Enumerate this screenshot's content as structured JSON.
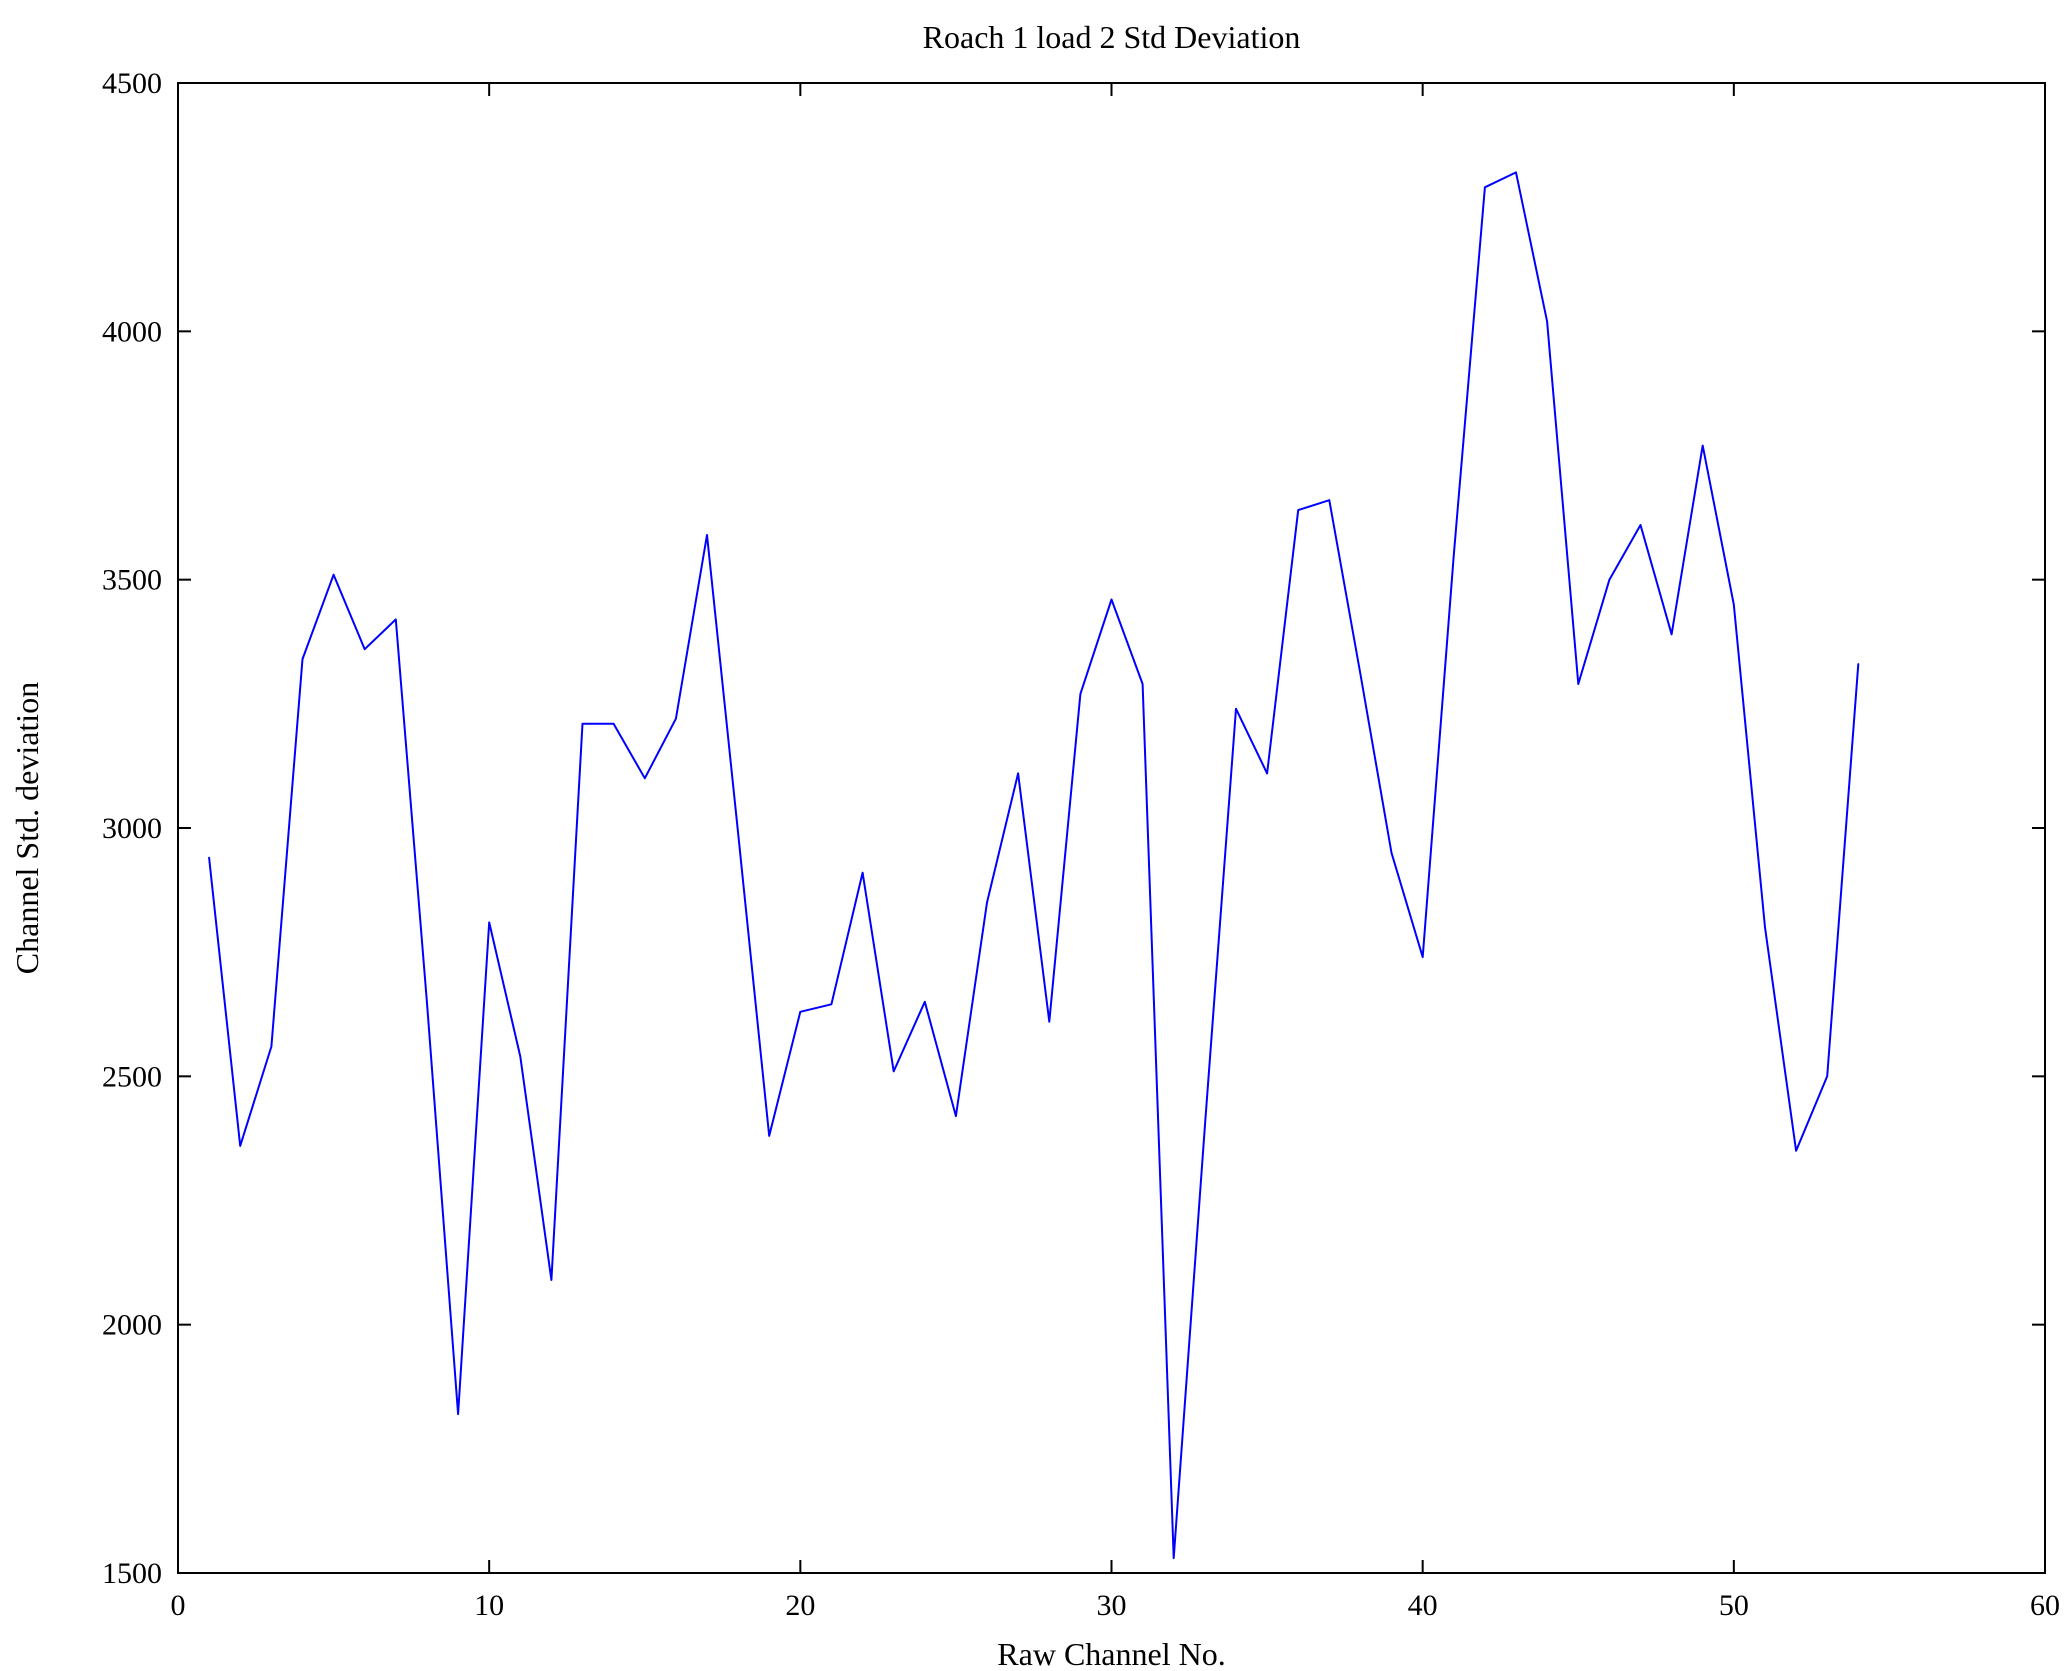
{
  "chart_data": {
    "type": "line",
    "title": "Roach 1 load 2 Std Deviation",
    "xlabel": "Raw Channel No.",
    "ylabel": "Channel Std. deviation",
    "xlim": [
      0,
      60
    ],
    "ylim": [
      1500,
      4500
    ],
    "xticks": [
      0,
      10,
      20,
      30,
      40,
      50,
      60
    ],
    "yticks": [
      1500,
      2000,
      2500,
      3000,
      3500,
      4000,
      4500
    ],
    "grid": false,
    "legend": "none",
    "line_color": "#0000ff",
    "axis_color": "#000000",
    "series_name": "Channel Std. deviation",
    "x": [
      1,
      2,
      3,
      4,
      5,
      6,
      7,
      8,
      9,
      10,
      11,
      12,
      13,
      14,
      15,
      16,
      17,
      18,
      19,
      20,
      21,
      22,
      23,
      24,
      25,
      26,
      27,
      28,
      29,
      30,
      31,
      32,
      33,
      34,
      35,
      36,
      37,
      38,
      39,
      40,
      41,
      42,
      43,
      44,
      45,
      46,
      47,
      48,
      49,
      50,
      51,
      52,
      53,
      54
    ],
    "y": [
      2940,
      2360,
      2560,
      3340,
      3510,
      3360,
      3420,
      2650,
      1820,
      2810,
      2540,
      2090,
      3210,
      3210,
      3100,
      3220,
      3590,
      2990,
      2380,
      2630,
      2645,
      2910,
      2510,
      2650,
      2420,
      2850,
      3110,
      2610,
      3270,
      3460,
      3290,
      1530,
      2400,
      3240,
      3110,
      3640,
      3660,
      3310,
      2950,
      2740,
      3550,
      4290,
      4320,
      4020,
      3290,
      3500,
      3610,
      3390,
      3770,
      3450,
      2800,
      2350,
      2500,
      3330
    ]
  }
}
